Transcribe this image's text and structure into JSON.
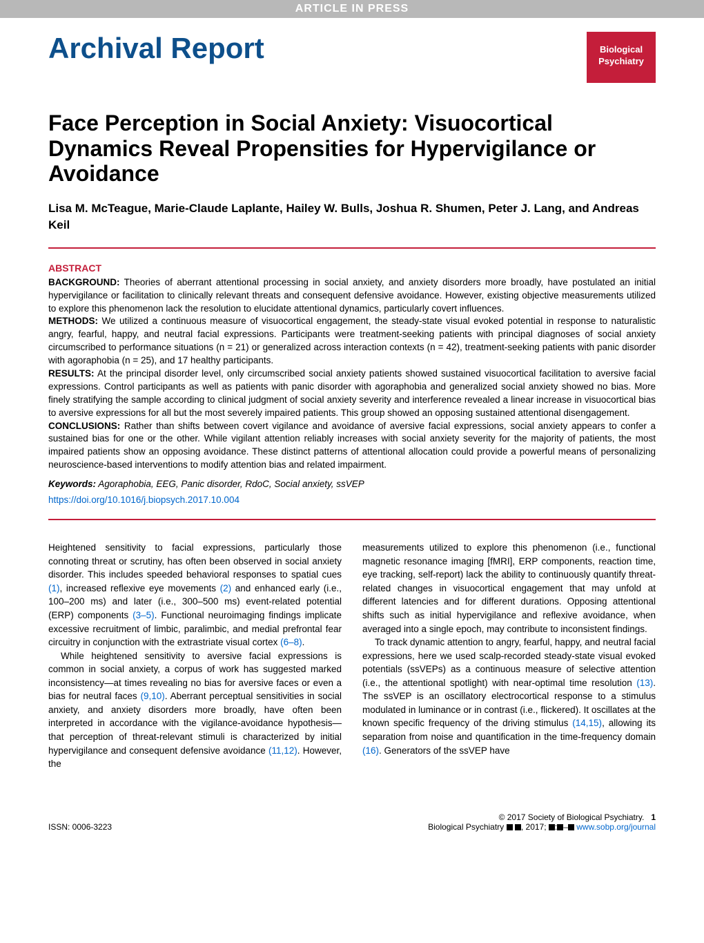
{
  "banner": "ARTICLE IN PRESS",
  "header": {
    "section_title": "Archival Report",
    "badge_line1": "Biological",
    "badge_line2": "Psychiatry"
  },
  "article": {
    "title": "Face Perception in Social Anxiety: Visuocortical Dynamics Reveal Propensities for Hypervigilance or Avoidance",
    "authors": "Lisa M. McTeague, Marie-Claude Laplante, Hailey W. Bulls, Joshua R. Shumen, Peter J. Lang, and Andreas Keil"
  },
  "abstract": {
    "heading": "ABSTRACT",
    "background_label": "BACKGROUND:",
    "background": "Theories of aberrant attentional processing in social anxiety, and anxiety disorders more broadly, have postulated an initial hypervigilance or facilitation to clinically relevant threats and consequent defensive avoidance. However, existing objective measurements utilized to explore this phenomenon lack the resolution to elucidate attentional dynamics, particularly covert influences.",
    "methods_label": "METHODS:",
    "methods": "We utilized a continuous measure of visuocortical engagement, the steady-state visual evoked potential in response to naturalistic angry, fearful, happy, and neutral facial expressions. Participants were treatment-seeking patients with principal diagnoses of social anxiety circumscribed to performance situations (n = 21) or generalized across interaction contexts (n = 42), treatment-seeking patients with panic disorder with agoraphobia (n = 25), and 17 healthy participants.",
    "results_label": "RESULTS:",
    "results": "At the principal disorder level, only circumscribed social anxiety patients showed sustained visuocortical facilitation to aversive facial expressions. Control participants as well as patients with panic disorder with agoraphobia and generalized social anxiety showed no bias. More finely stratifying the sample according to clinical judgment of social anxiety severity and interference revealed a linear increase in visuocortical bias to aversive expressions for all but the most severely impaired patients. This group showed an opposing sustained attentional disengagement.",
    "conclusions_label": "CONCLUSIONS:",
    "conclusions": "Rather than shifts between covert vigilance and avoidance of aversive facial expressions, social anxiety appears to confer a sustained bias for one or the other. While vigilant attention reliably increases with social anxiety severity for the majority of patients, the most impaired patients show an opposing avoidance. These distinct patterns of attentional allocation could provide a powerful means of personalizing neuroscience-based interventions to modify attention bias and related impairment.",
    "keywords_label": "Keywords:",
    "keywords": "Agoraphobia, EEG, Panic disorder, RdoC, Social anxiety, ssVEP",
    "doi": "https://doi.org/10.1016/j.biopsych.2017.10.004"
  },
  "body": {
    "col1_p1_a": "Heightened sensitivity to facial expressions, particularly those connoting threat or scrutiny, has often been observed in social anxiety disorder. This includes speeded behavioral responses to spatial cues ",
    "col1_p1_ref1": "(1)",
    "col1_p1_b": ", increased reflexive eye movements ",
    "col1_p1_ref2": "(2)",
    "col1_p1_c": " and enhanced early (i.e., 100–200 ms) and later (i.e., 300–500 ms) event-related potential (ERP) components ",
    "col1_p1_ref3": "(3–5)",
    "col1_p1_d": ". Functional neuroimaging findings implicate excessive recruitment of limbic, paralimbic, and medial prefrontal fear circuitry in conjunction with the extrastriate visual cortex ",
    "col1_p1_ref4": "(6–8)",
    "col1_p1_e": ".",
    "col1_p2_a": "While heightened sensitivity to aversive facial expressions is common in social anxiety, a corpus of work has suggested marked inconsistency—at times revealing no bias for aversive faces or even a bias for neutral faces ",
    "col1_p2_ref1": "(9,10)",
    "col1_p2_b": ". Aberrant perceptual sensitivities in social anxiety, and anxiety disorders more broadly, have often been interpreted in accordance with the vigilance-avoidance hypothesis—that perception of threat-relevant stimuli is characterized by initial hypervigilance and consequent defensive avoidance ",
    "col1_p2_ref2": "(11,12)",
    "col1_p2_c": ". However, the",
    "col2_p1": "measurements utilized to explore this phenomenon (i.e., functional magnetic resonance imaging [fMRI], ERP components, reaction time, eye tracking, self-report) lack the ability to continuously quantify threat-related changes in visuocortical engagement that may unfold at different latencies and for different durations. Opposing attentional shifts such as initial hypervigilance and reflexive avoidance, when averaged into a single epoch, may contribute to inconsistent findings.",
    "col2_p2_a": "To track dynamic attention to angry, fearful, happy, and neutral facial expressions, here we used scalp-recorded steady-state visual evoked potentials (ssVEPs) as a continuous measure of selective attention (i.e., the attentional spotlight) with near-optimal time resolution ",
    "col2_p2_ref1": "(13)",
    "col2_p2_b": ". The ssVEP is an oscillatory electrocortical response to a stimulus modulated in luminance or in contrast (i.e., flickered). It oscillates at the known specific frequency of the driving stimulus ",
    "col2_p2_ref2": "(14,15)",
    "col2_p2_c": ", allowing its separation from noise and quantification in the time-frequency domain ",
    "col2_p2_ref3": "(16)",
    "col2_p2_d": ". Generators of the ssVEP have"
  },
  "footer": {
    "issn_label": "ISSN: 0006-3223",
    "copyright": "© 2017 Society of Biological Psychiatry.",
    "page": "1",
    "journal_line_a": "Biological Psychiatry ",
    "journal_line_b": ", 2017; ",
    "journal_line_c": ":",
    "journal_line_d": "–",
    "journal_url": "www.sobp.org/journal"
  },
  "colors": {
    "accent_red": "#c41e3a",
    "accent_blue": "#0d4f8b",
    "link_blue": "#0066cc",
    "banner_gray": "#b8b8b8"
  }
}
